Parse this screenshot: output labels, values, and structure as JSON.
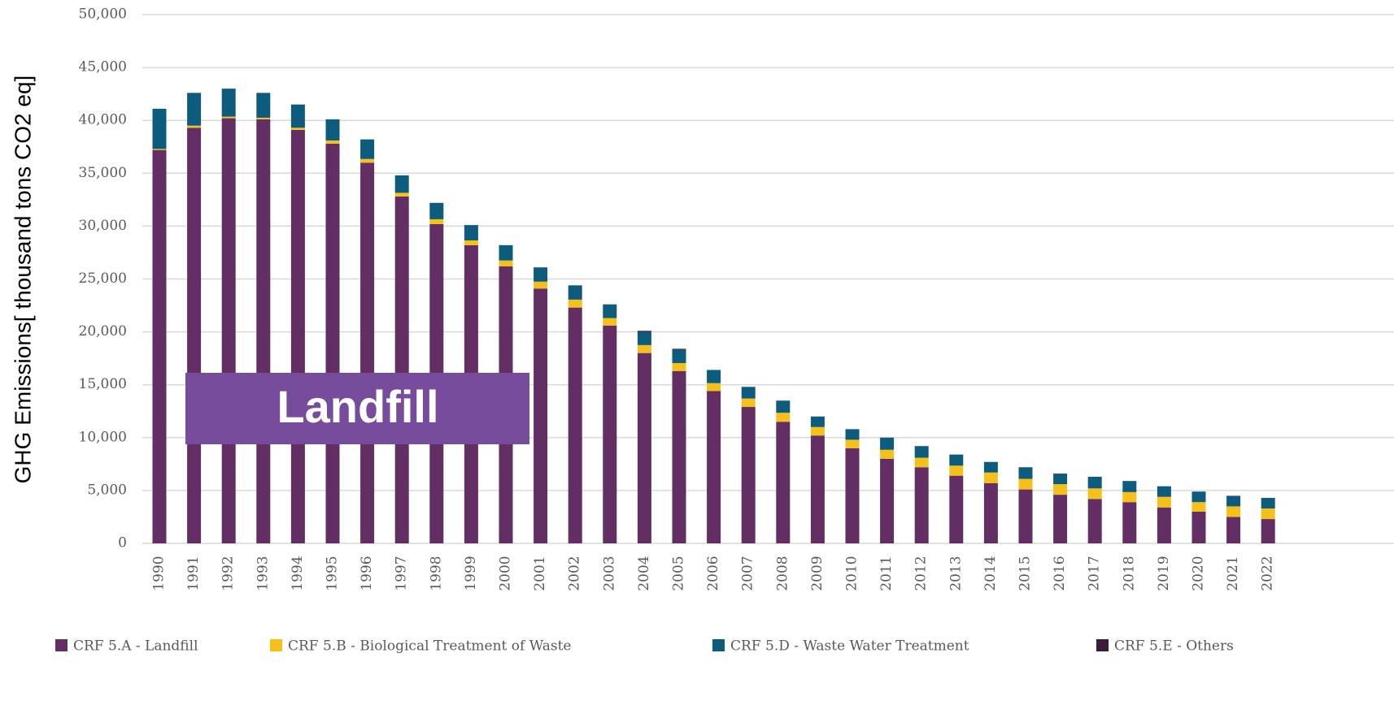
{
  "chart_data": {
    "type": "stacked_bar",
    "y_label": "GHG Emissions[ thousand tons CO2 eq]",
    "annotation": "Landfill",
    "categories": [
      "1990",
      "1991",
      "1992",
      "1993",
      "1994",
      "1995",
      "1996",
      "1997",
      "1998",
      "1999",
      "2000",
      "2001",
      "2002",
      "2003",
      "2004",
      "2005",
      "2006",
      "2007",
      "2008",
      "2009",
      "2010",
      "2011",
      "2012",
      "2013",
      "2014",
      "2015",
      "2016",
      "2017",
      "2018",
      "2019",
      "2020",
      "2021",
      "2022"
    ],
    "series": [
      {
        "name": "CRF 5.A - Landfill",
        "color": "#622e63",
        "values": [
          37200,
          39300,
          40200,
          40100,
          39100,
          37800,
          36000,
          32800,
          30200,
          28200,
          26200,
          24100,
          22300,
          20600,
          18000,
          16300,
          14400,
          12900,
          11500,
          10200,
          9000,
          8000,
          7200,
          6400,
          5700,
          5100,
          4600,
          4200,
          3900,
          3400,
          3000,
          2500,
          2300
        ]
      },
      {
        "name": "CRF 5.B - Biological Treatment of Waste",
        "color": "#f5c01a",
        "values": [
          100,
          200,
          150,
          150,
          200,
          300,
          350,
          350,
          450,
          450,
          550,
          650,
          750,
          700,
          750,
          750,
          750,
          800,
          850,
          800,
          800,
          850,
          900,
          950,
          1000,
          1000,
          1000,
          1000,
          950,
          1000,
          900,
          1000,
          1000
        ]
      },
      {
        "name": "CRF 5.D - Waste Water Treatment",
        "color": "#0e5c7d",
        "values": [
          3800,
          3100,
          2650,
          2350,
          2200,
          2000,
          1850,
          1650,
          1550,
          1450,
          1450,
          1350,
          1350,
          1300,
          1250,
          1250,
          1250,
          1100,
          1150,
          1000,
          1000,
          1150,
          1100,
          1050,
          1000,
          1100,
          1000,
          1100,
          1050,
          1000,
          1000,
          1000,
          1000
        ]
      },
      {
        "name": "CRF 5.E - Others",
        "color": "#3b1a3a",
        "values": [
          0,
          0,
          0,
          0,
          0,
          0,
          0,
          0,
          0,
          0,
          0,
          0,
          0,
          0,
          100,
          100,
          0,
          0,
          0,
          0,
          0,
          0,
          0,
          0,
          0,
          0,
          0,
          0,
          0,
          0,
          0,
          0,
          0
        ]
      }
    ],
    "ylim": [
      0,
      50000
    ],
    "yticks": [
      {
        "value": 0,
        "label": "0"
      },
      {
        "value": 5000,
        "label": "5,000"
      },
      {
        "value": 10000,
        "label": "10,000"
      },
      {
        "value": 15000,
        "label": "15,000"
      },
      {
        "value": 20000,
        "label": "20,000"
      },
      {
        "value": 25000,
        "label": "25,000"
      },
      {
        "value": 30000,
        "label": "30,000"
      },
      {
        "value": 35000,
        "label": "35,000"
      },
      {
        "value": 40000,
        "label": "40,000"
      },
      {
        "value": 45000,
        "label": "45,000"
      },
      {
        "value": 50000,
        "label": "50,000"
      }
    ],
    "grid": true
  }
}
